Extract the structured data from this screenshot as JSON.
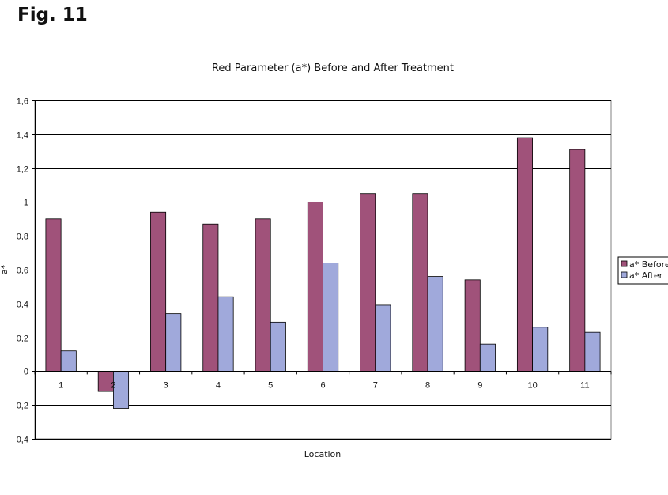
{
  "figure": {
    "label": "Fig. 11"
  },
  "chart_data": {
    "type": "bar",
    "title": "Red Parameter (a*) Before and After Treatment",
    "xlabel": "Location",
    "ylabel": "a*",
    "categories": [
      "1",
      "2",
      "3",
      "4",
      "5",
      "6",
      "7",
      "8",
      "9",
      "10",
      "11"
    ],
    "series": [
      {
        "name": "a* Before",
        "color": "#a0527a",
        "values": [
          0.9,
          -0.12,
          0.94,
          0.87,
          0.9,
          1.0,
          1.05,
          1.05,
          0.54,
          1.38,
          1.31
        ]
      },
      {
        "name": "a* After",
        "color": "#a0a9db",
        "values": [
          0.12,
          -0.22,
          0.34,
          0.44,
          0.29,
          0.64,
          0.39,
          0.56,
          0.16,
          0.26,
          0.23
        ]
      }
    ],
    "ylim": [
      -0.4,
      1.6
    ],
    "yticks": [
      -0.4,
      -0.2,
      0,
      0.2,
      0.4,
      0.6,
      0.8,
      1,
      1.2,
      1.4,
      1.6
    ],
    "ytick_labels": [
      "-0,4",
      "-0,2",
      "0",
      "0,2",
      "0,4",
      "0,6",
      "0,8",
      "1",
      "1,2",
      "1,4",
      "1,6"
    ],
    "grid": true,
    "legend": "right"
  }
}
